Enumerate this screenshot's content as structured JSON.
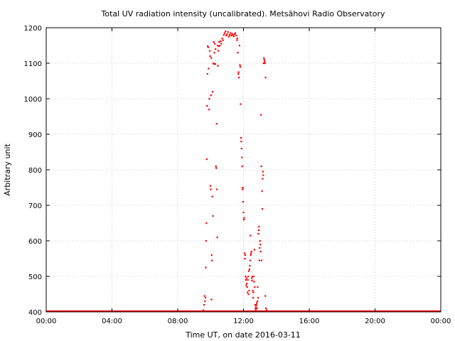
{
  "chart_data": {
    "type": "scatter",
    "title": "Total UV radiation intensity (uncalibrated). Metsähovi Radio Observatory",
    "xlabel": "Time UT, on date 2016-03-11",
    "ylabel": "Arbitrary unit",
    "xlim": [
      0,
      24
    ],
    "ylim": [
      400,
      1200
    ],
    "x_ticks": [
      0,
      4,
      8,
      12,
      16,
      20,
      24
    ],
    "x_tick_labels": [
      "00:00",
      "04:00",
      "08:00",
      "12:00",
      "16:00",
      "20:00",
      "00:00"
    ],
    "y_ticks": [
      400,
      500,
      600,
      700,
      800,
      900,
      1000,
      1100,
      1200
    ],
    "y_tick_labels": [
      "400",
      "500",
      "600",
      "700",
      "800",
      "900",
      "1000",
      "1100",
      "1200"
    ],
    "grid": true,
    "marker_color": "#ff0000",
    "baseline": {
      "value": 400,
      "x_start": 0,
      "x_end": 24
    },
    "points": [
      [
        9.55,
        405
      ],
      [
        9.6,
        420
      ],
      [
        9.62,
        445
      ],
      [
        9.65,
        430
      ],
      [
        9.68,
        440
      ],
      [
        9.7,
        525
      ],
      [
        9.72,
        600
      ],
      [
        9.74,
        650
      ],
      [
        9.76,
        830
      ],
      [
        9.78,
        980
      ],
      [
        9.8,
        1070
      ],
      [
        9.82,
        1148
      ],
      [
        9.85,
        1145
      ],
      [
        9.87,
        1085
      ],
      [
        9.9,
        970
      ],
      [
        9.92,
        1000
      ],
      [
        9.95,
        1135
      ],
      [
        9.97,
        1120
      ],
      [
        9.98,
        755
      ],
      [
        10.0,
        745
      ],
      [
        10.02,
        1010
      ],
      [
        10.04,
        1115
      ],
      [
        10.05,
        435
      ],
      [
        10.06,
        560
      ],
      [
        10.08,
        545
      ],
      [
        10.1,
        725
      ],
      [
        10.12,
        1020
      ],
      [
        10.14,
        670
      ],
      [
        10.16,
        1100
      ],
      [
        10.18,
        1160
      ],
      [
        10.2,
        1098
      ],
      [
        10.22,
        1130
      ],
      [
        10.25,
        1155
      ],
      [
        10.28,
        1098
      ],
      [
        10.3,
        1140
      ],
      [
        10.32,
        810
      ],
      [
        10.34,
        805
      ],
      [
        10.36,
        930
      ],
      [
        10.38,
        745
      ],
      [
        10.4,
        610
      ],
      [
        10.42,
        1150
      ],
      [
        10.44,
        1093
      ],
      [
        10.46,
        1135
      ],
      [
        10.5,
        1148
      ],
      [
        10.52,
        1160
      ],
      [
        10.55,
        1150
      ],
      [
        10.6,
        1162
      ],
      [
        10.65,
        1155
      ],
      [
        10.7,
        1170
      ],
      [
        10.75,
        1165
      ],
      [
        10.8,
        1180
      ],
      [
        10.85,
        1185
      ],
      [
        10.9,
        1190
      ],
      [
        10.95,
        1178
      ],
      [
        11.0,
        1182
      ],
      [
        11.05,
        1188
      ],
      [
        11.1,
        1175
      ],
      [
        11.15,
        1180
      ],
      [
        11.2,
        1185
      ],
      [
        11.25,
        1178
      ],
      [
        11.3,
        1183
      ],
      [
        11.35,
        1180
      ],
      [
        11.4,
        1176
      ],
      [
        11.45,
        1182
      ],
      [
        11.5,
        1185
      ],
      [
        11.55,
        1178
      ],
      [
        11.6,
        1165
      ],
      [
        11.62,
        1170
      ],
      [
        11.65,
        1130
      ],
      [
        11.68,
        1070
      ],
      [
        11.7,
        1075
      ],
      [
        11.72,
        1060
      ],
      [
        11.75,
        1150
      ],
      [
        11.78,
        1095
      ],
      [
        11.8,
        1090
      ],
      [
        11.82,
        985
      ],
      [
        11.84,
        890
      ],
      [
        11.86,
        880
      ],
      [
        11.88,
        860
      ],
      [
        11.9,
        835
      ],
      [
        11.92,
        810
      ],
      [
        11.94,
        745
      ],
      [
        11.96,
        750
      ],
      [
        11.98,
        710
      ],
      [
        12.0,
        680
      ],
      [
        12.02,
        660
      ],
      [
        12.04,
        665
      ],
      [
        12.06,
        565
      ],
      [
        12.08,
        550
      ],
      [
        12.1,
        560
      ],
      [
        12.12,
        500
      ],
      [
        12.14,
        490
      ],
      [
        12.16,
        475
      ],
      [
        12.18,
        495
      ],
      [
        12.2,
        480
      ],
      [
        12.22,
        470
      ],
      [
        12.24,
        455
      ],
      [
        12.26,
        490
      ],
      [
        12.28,
        500
      ],
      [
        12.3,
        450
      ],
      [
        12.32,
        515
      ],
      [
        12.34,
        460
      ],
      [
        12.36,
        520
      ],
      [
        12.38,
        530
      ],
      [
        12.4,
        545
      ],
      [
        12.42,
        615
      ],
      [
        12.44,
        560
      ],
      [
        12.46,
        565
      ],
      [
        12.48,
        570
      ],
      [
        12.5,
        495
      ],
      [
        12.52,
        488
      ],
      [
        12.54,
        500
      ],
      [
        12.56,
        460
      ],
      [
        12.58,
        440
      ],
      [
        12.6,
        455
      ],
      [
        12.62,
        500
      ],
      [
        12.64,
        485
      ],
      [
        12.66,
        575
      ],
      [
        12.68,
        470
      ],
      [
        12.7,
        420
      ],
      [
        12.72,
        410
      ],
      [
        12.74,
        405
      ],
      [
        12.76,
        415
      ],
      [
        12.78,
        420
      ],
      [
        12.8,
        425
      ],
      [
        12.82,
        410
      ],
      [
        12.84,
        430
      ],
      [
        12.86,
        470
      ],
      [
        12.88,
        440
      ],
      [
        12.9,
        620
      ],
      [
        12.92,
        630
      ],
      [
        12.94,
        640
      ],
      [
        12.96,
        545
      ],
      [
        12.98,
        580
      ],
      [
        13.0,
        600
      ],
      [
        13.02,
        590
      ],
      [
        13.04,
        570
      ],
      [
        13.06,
        955
      ],
      [
        13.08,
        810
      ],
      [
        13.1,
        545
      ],
      [
        13.12,
        740
      ],
      [
        13.14,
        690
      ],
      [
        13.16,
        775
      ],
      [
        13.18,
        795
      ],
      [
        13.2,
        785
      ],
      [
        13.22,
        1100
      ],
      [
        13.24,
        1115
      ],
      [
        13.26,
        1110
      ],
      [
        13.28,
        1105
      ],
      [
        13.3,
        1100
      ],
      [
        13.32,
        445
      ],
      [
        13.34,
        1060
      ],
      [
        13.36,
        410
      ],
      [
        13.4,
        405
      ],
      [
        13.45,
        402
      ]
    ]
  }
}
